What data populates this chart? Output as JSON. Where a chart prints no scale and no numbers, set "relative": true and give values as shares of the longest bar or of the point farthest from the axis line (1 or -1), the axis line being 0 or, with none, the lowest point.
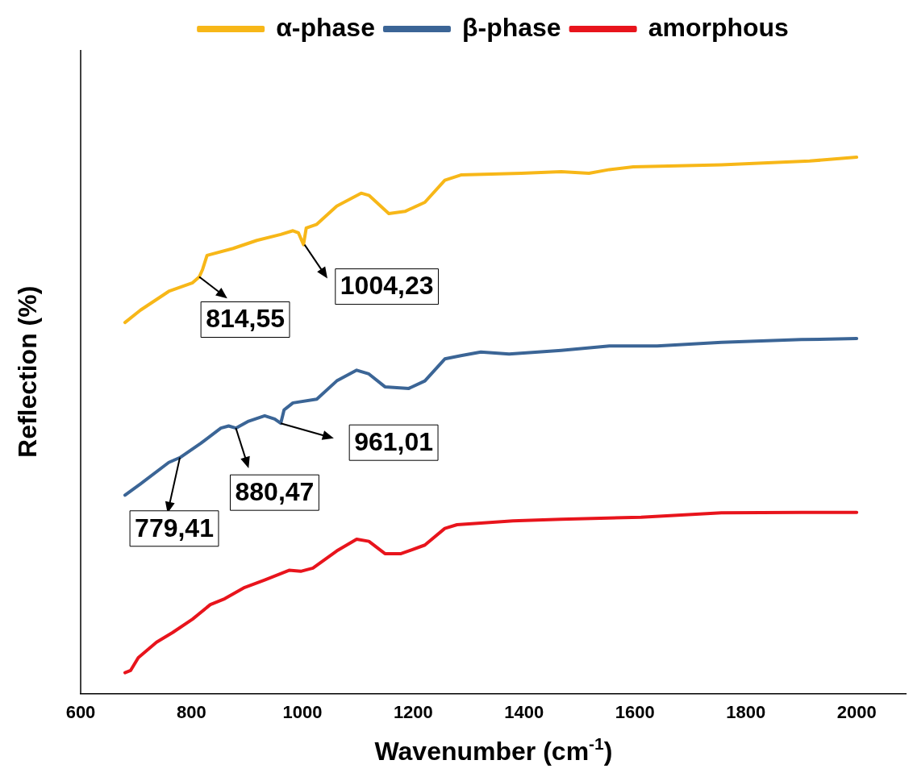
{
  "chart_data": {
    "type": "line",
    "relative": true,
    "xlabel": "Wavenumber (cm$^{-1}$)",
    "ylabel": "Reflection (%)",
    "xlim": [
      600,
      2090
    ],
    "xticks": [
      600,
      800,
      1000,
      1200,
      1400,
      1600,
      1800,
      2000
    ],
    "legend": "top",
    "grid": false,
    "marker": "none",
    "line_style": "solid",
    "series": [
      {
        "name": "α-phase",
        "color": "#f7b718",
        "x": [
          680,
          708,
          759,
          802,
          814,
          820,
          828,
          875,
          918,
          961,
          983,
          993,
          1002,
          1007,
          1026,
          1062,
          1106,
          1120,
          1156,
          1185,
          1221,
          1257,
          1286,
          1395,
          1467,
          1517,
          1554,
          1597,
          1756,
          1915,
          2000
        ],
        "values": [
          0.692,
          0.715,
          0.75,
          0.766,
          0.777,
          0.791,
          0.817,
          0.83,
          0.845,
          0.856,
          0.863,
          0.859,
          0.837,
          0.868,
          0.875,
          0.909,
          0.933,
          0.929,
          0.895,
          0.899,
          0.916,
          0.957,
          0.967,
          0.97,
          0.973,
          0.97,
          0.977,
          0.982,
          0.986,
          0.993,
          1
        ]
      },
      {
        "name": "β-phase",
        "color": "#3b6596",
        "x": [
          680,
          708,
          759,
          779,
          817,
          853,
          867,
          880,
          903,
          932,
          950,
          961,
          967,
          983,
          1026,
          1062,
          1098,
          1120,
          1149,
          1192,
          1221,
          1257,
          1286,
          1322,
          1373,
          1467,
          1554,
          1640,
          1756,
          1900,
          2000
        ],
        "values": [
          0.37,
          0.391,
          0.431,
          0.44,
          0.467,
          0.495,
          0.499,
          0.495,
          0.508,
          0.518,
          0.512,
          0.504,
          0.529,
          0.542,
          0.549,
          0.583,
          0.603,
          0.596,
          0.572,
          0.569,
          0.583,
          0.624,
          0.63,
          0.637,
          0.633,
          0.64,
          0.648,
          0.648,
          0.655,
          0.66,
          0.662
        ]
      },
      {
        "name": "amorphous",
        "color": "#e8141c",
        "x": [
          680,
          690,
          704,
          737,
          766,
          802,
          834,
          860,
          896,
          932,
          976,
          997,
          1019,
          1062,
          1098,
          1120,
          1149,
          1178,
          1221,
          1257,
          1279,
          1322,
          1380,
          1467,
          1611,
          1756,
          1900,
          2000
        ],
        "values": [
          0.039,
          0.043,
          0.067,
          0.096,
          0.114,
          0.139,
          0.166,
          0.177,
          0.198,
          0.212,
          0.23,
          0.228,
          0.234,
          0.266,
          0.288,
          0.284,
          0.261,
          0.261,
          0.277,
          0.308,
          0.315,
          0.318,
          0.322,
          0.325,
          0.329,
          0.337,
          0.338,
          0.338
        ]
      }
    ],
    "annotations": [
      {
        "text": "814,55",
        "x": 814,
        "y": 0.777
      },
      {
        "text": "1004,23",
        "x": 1004,
        "y": 0.837
      },
      {
        "text": "779,41",
        "x": 779,
        "y": 0.44
      },
      {
        "text": "880,47",
        "x": 880,
        "y": 0.495
      },
      {
        "text": "961,01",
        "x": 961,
        "y": 0.504
      }
    ]
  }
}
